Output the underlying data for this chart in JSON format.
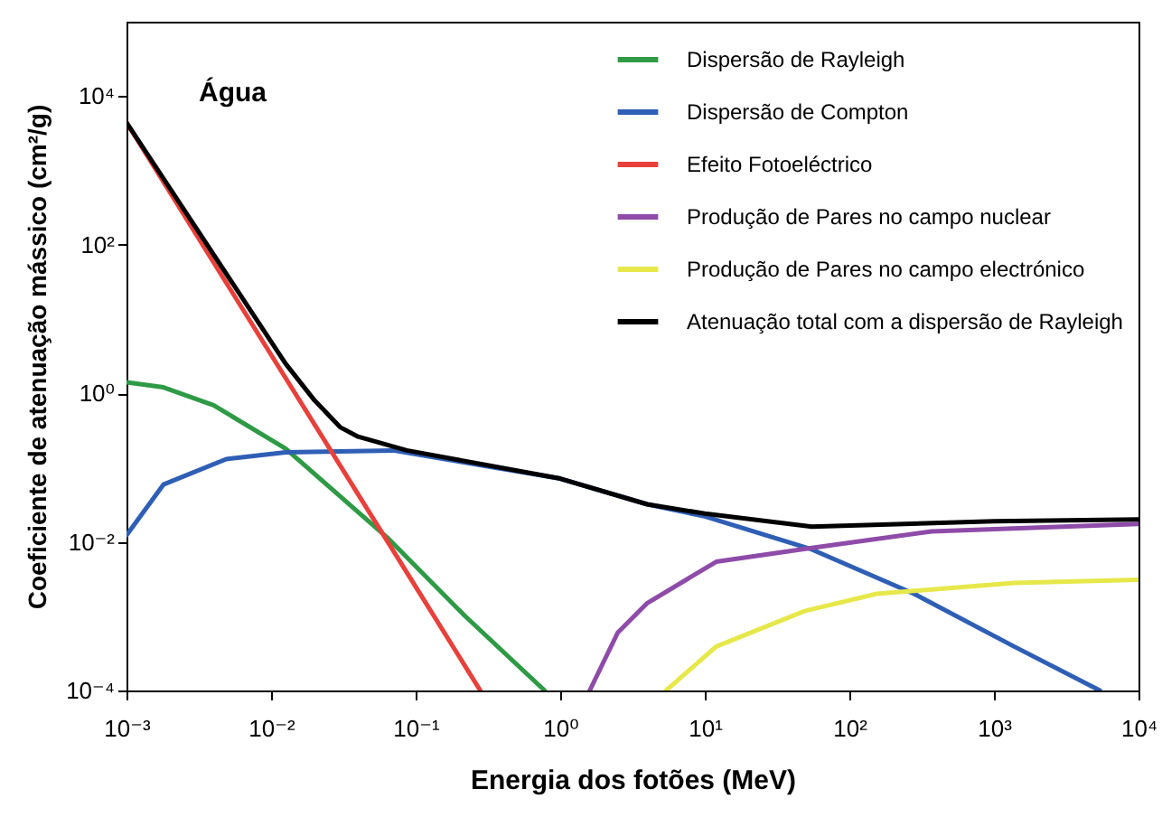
{
  "chart_data": {
    "type": "line",
    "xlabel": "Energia dos fotões (MeV)",
    "ylabel": "Coeficiente de atenuação mássico (cm²/g)",
    "annotations": [
      "Água"
    ],
    "log": "xy",
    "grid": false,
    "legend": "top right",
    "marker": "none",
    "line_style": "solid",
    "xlim": [
      0.001,
      10000
    ],
    "ylim": [
      0.0001,
      100000
    ],
    "xticks": [
      {
        "value": 0.001,
        "label": "10⁻³"
      },
      {
        "value": 0.01,
        "label": "10⁻²"
      },
      {
        "value": 0.1,
        "label": "10⁻¹"
      },
      {
        "value": 1,
        "label": "10⁰"
      },
      {
        "value": 10,
        "label": "10¹"
      },
      {
        "value": 100,
        "label": "10²"
      },
      {
        "value": 1000,
        "label": "10³"
      },
      {
        "value": 10000,
        "label": "10⁴"
      }
    ],
    "yticks": [
      {
        "value": 0.0001,
        "label": "10⁻⁴"
      },
      {
        "value": 0.01,
        "label": "10⁻²"
      },
      {
        "value": 1,
        "label": "10⁰"
      },
      {
        "value": 100,
        "label": "10²"
      },
      {
        "value": 10000,
        "label": "10⁴"
      }
    ],
    "series": [
      {
        "name": "Dispersão de Rayleigh",
        "color": "#2e9a45",
        "x": [
          0.001,
          0.0018,
          0.004,
          0.0126,
          0.065,
          0.22,
          0.78
        ],
        "values": [
          1.4,
          1.2,
          0.69,
          0.18,
          0.011,
          0.001,
          0.0001
        ]
      },
      {
        "name": "Dispersão de Compton",
        "color": "#2f5fb5",
        "x": [
          0.001,
          0.0018,
          0.0049,
          0.0126,
          0.07,
          1,
          4,
          10,
          55,
          280,
          1380,
          5400
        ],
        "values": [
          0.0123,
          0.059,
          0.13,
          0.16,
          0.17,
          0.071,
          0.032,
          0.022,
          0.0079,
          0.002,
          0.00039,
          0.0001
        ]
      },
      {
        "name": "Efeito Fotoeléctrico",
        "color": "#e8403a",
        "x": [
          0.001,
          0.01,
          0.1,
          0.28
        ],
        "values": [
          4400,
          3.3,
          0.0025,
          0.0001
        ]
      },
      {
        "name": "Produção de Pares no campo nuclear",
        "color": "#8e4ba8",
        "x": [
          1.6,
          2.5,
          4,
          12,
          55,
          370,
          10000
        ],
        "values": [
          0.0001,
          0.0006,
          0.0015,
          0.0054,
          0.0083,
          0.0138,
          0.0174
        ]
      },
      {
        "name": "Produção de Pares no campo electrónico",
        "color": "#e6e84a",
        "x": [
          5.4,
          12,
          49,
          155,
          1380,
          10000
        ],
        "values": [
          0.0001,
          0.00039,
          0.00117,
          0.002,
          0.0028,
          0.0031
        ]
      },
      {
        "name": "Atenuação total com a dispersão de Rayleigh",
        "color": "#000000",
        "x": [
          0.001,
          0.0126,
          0.02,
          0.03,
          0.04,
          0.087,
          1,
          4,
          10,
          55,
          1000,
          10000
        ],
        "values": [
          4400,
          2.5,
          0.8,
          0.35,
          0.26,
          0.17,
          0.071,
          0.032,
          0.024,
          0.016,
          0.019,
          0.02
        ]
      }
    ]
  }
}
